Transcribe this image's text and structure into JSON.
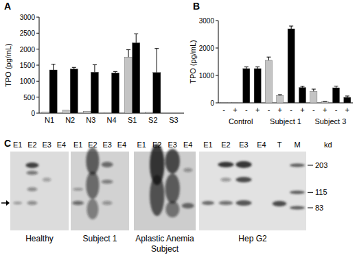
{
  "chart_data": [
    {
      "type": "bar",
      "title": "A",
      "ylabel": "TPO (pg/mL)",
      "categories": [
        "N1",
        "N2",
        "N3",
        "N4",
        "S1",
        "S2",
        "S3"
      ],
      "series": [
        {
          "color": "#c4c4c4",
          "values": [
            40,
            100,
            60,
            20,
            1750,
            30,
            0
          ],
          "errors": [
            0,
            0,
            0,
            0,
            230,
            0,
            0
          ]
        },
        {
          "color": "#000000",
          "values": [
            1350,
            1380,
            1280,
            1260,
            2200,
            1270,
            0
          ],
          "errors": [
            180,
            50,
            230,
            40,
            280,
            750,
            0
          ]
        }
      ],
      "ylim": [
        0,
        3000
      ],
      "yticks": [
        0,
        500,
        1000,
        1500,
        2000,
        2500,
        3000
      ]
    },
    {
      "type": "bar",
      "title": "B",
      "ylabel": "TPO (pg/mL)",
      "categories": [
        "-",
        "+",
        "-",
        "+",
        "-",
        "+",
        "-",
        "+",
        "-",
        "+",
        "-",
        "+"
      ],
      "values": [
        20,
        20,
        1250,
        1250,
        1550,
        270,
        2700,
        560,
        420,
        50,
        550,
        200
      ],
      "errors": [
        0,
        0,
        60,
        60,
        120,
        30,
        100,
        40,
        80,
        10,
        60,
        50
      ],
      "colors": [
        "#c4c4c4",
        "#c4c4c4",
        "#000000",
        "#000000",
        "#c4c4c4",
        "#c4c4c4",
        "#000000",
        "#000000",
        "#c4c4c4",
        "#c4c4c4",
        "#000000",
        "#000000"
      ],
      "groups": [
        "Control",
        "Subject 1",
        "Subject 3"
      ],
      "ylim": [
        0,
        3000
      ],
      "yticks": [
        0,
        1000,
        2000,
        3000
      ]
    }
  ],
  "panel_c": {
    "title": "C",
    "groups": [
      {
        "label": "Healthy",
        "lanes": [
          "E1",
          "E2",
          "E3",
          "E4"
        ]
      },
      {
        "label": "Subject 1",
        "lanes": [
          "E1",
          "E2",
          "E3",
          "E4"
        ]
      },
      {
        "label": "Aplastic Anemia Subject",
        "lanes": [
          "E1",
          "E2",
          "E3",
          "E4"
        ]
      },
      {
        "label": "Hep G2",
        "lanes": [
          "E1",
          "E2",
          "E3",
          "E4",
          "T",
          "M"
        ]
      }
    ],
    "markers": [
      203,
      115,
      83
    ],
    "unit": "kd"
  }
}
